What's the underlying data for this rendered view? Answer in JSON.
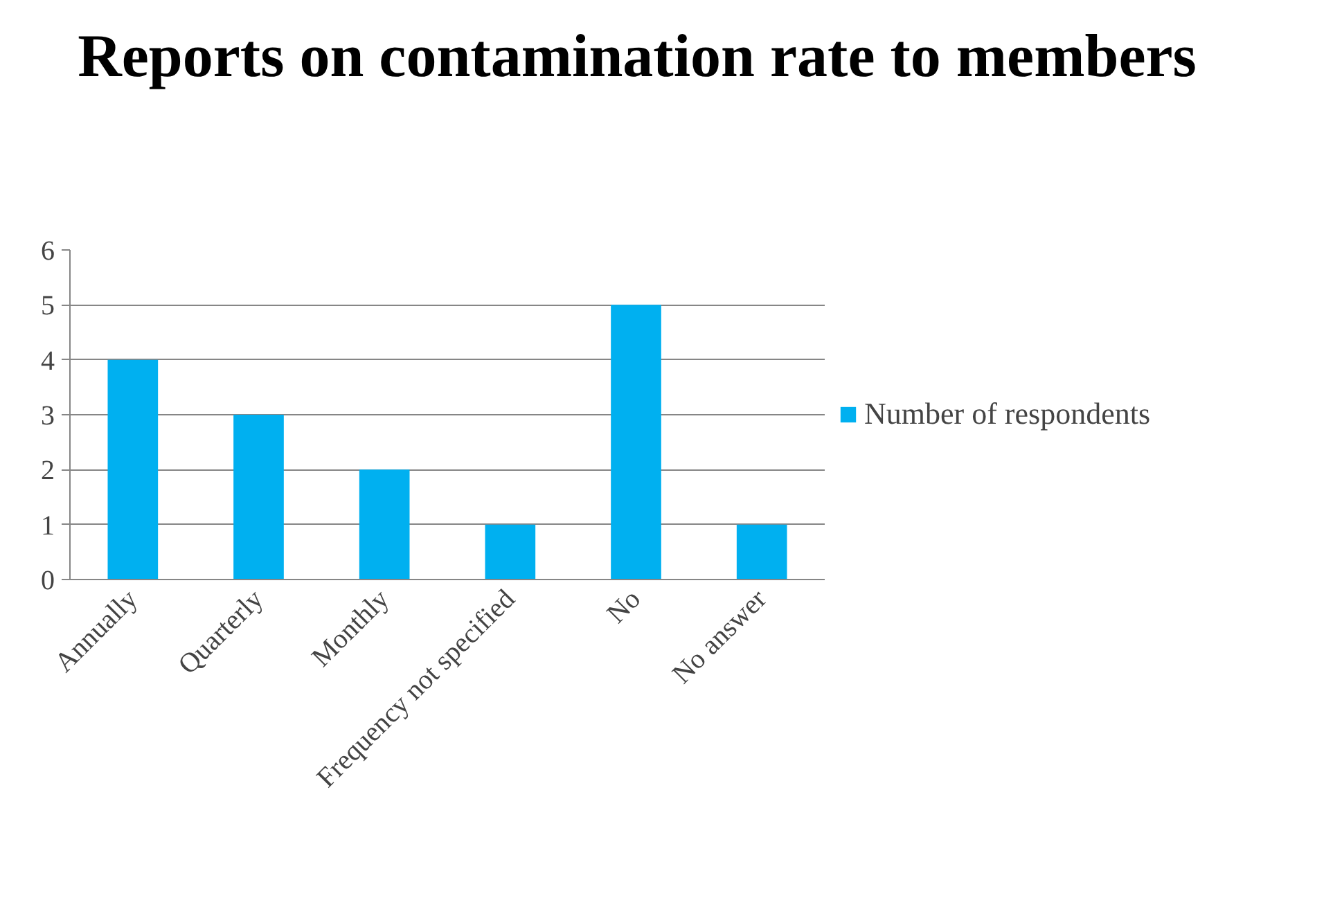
{
  "chart_data": {
    "type": "bar",
    "title": "Reports on contamination rate to members",
    "categories": [
      "Annually",
      "Quarterly",
      "Monthly",
      "Frequency not specified",
      "No",
      "No answer"
    ],
    "series": [
      {
        "name": "Number of respondents",
        "color": "#00b0f0",
        "values": [
          4,
          3,
          2,
          1,
          5,
          1
        ]
      }
    ],
    "ylim": [
      0,
      6
    ],
    "yticks": [
      0,
      1,
      2,
      3,
      4,
      5,
      6
    ],
    "grid": "y",
    "legend": "right"
  }
}
